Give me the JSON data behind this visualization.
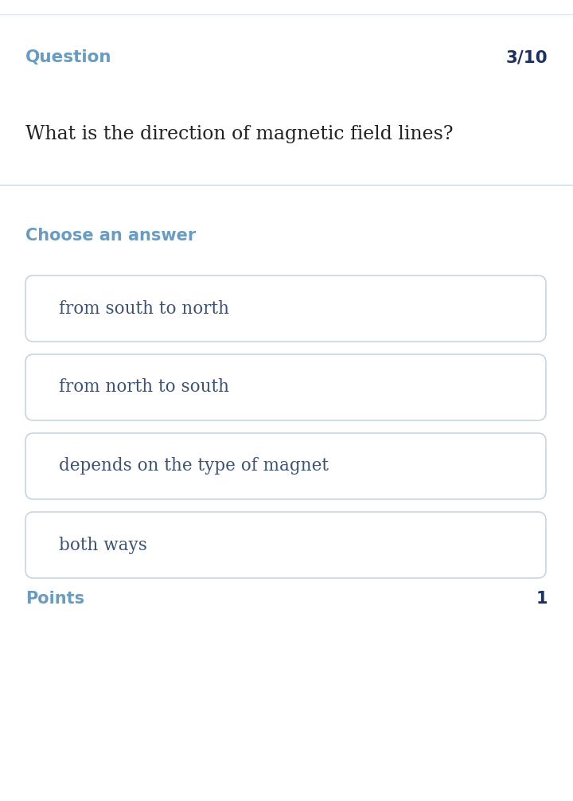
{
  "background_color": "#ffffff",
  "top_line_color": "#dde5ec",
  "question_label": "Question",
  "question_number": "3/10",
  "question_label_color": "#6a9cc0",
  "question_number_color": "#1e3060",
  "question_text": "What is the direction of magnetic field lines?",
  "question_text_color": "#222222",
  "divider_color": "#c5d2dc",
  "choose_label": "Choose an answer",
  "choose_label_color": "#6a9cc0",
  "answers": [
    "from south to north",
    "from north to south",
    "depends on the type of magnet",
    "both ways"
  ],
  "answer_text_color": "#3d5470",
  "answer_box_edge_color": "#c5d2dc",
  "answer_box_fill_color": "#ffffff",
  "points_label": "Points",
  "points_label_color": "#6a9cc0",
  "points_value": "1",
  "points_value_color": "#1e3060",
  "fig_width": 7.2,
  "fig_height": 10.06,
  "dpi": 100
}
